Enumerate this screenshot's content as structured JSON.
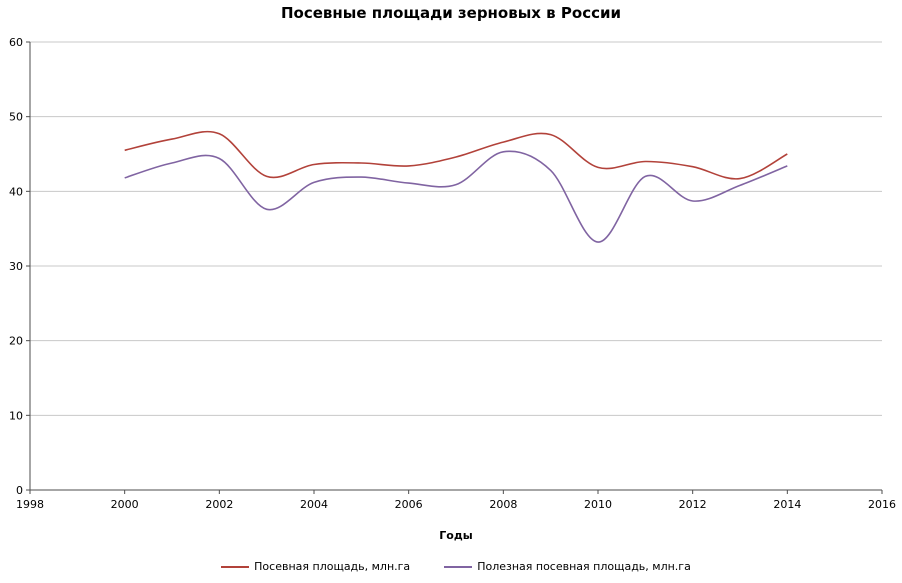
{
  "chart_data": {
    "type": "line",
    "title": "Посевные площади зерновых в России",
    "xlabel": "Годы",
    "ylabel": "",
    "xlim": [
      1998,
      2016
    ],
    "ylim": [
      0,
      60
    ],
    "x_ticks": [
      1998,
      2000,
      2002,
      2004,
      2006,
      2008,
      2010,
      2012,
      2014,
      2016
    ],
    "y_ticks": [
      0,
      10,
      20,
      30,
      40,
      50,
      60
    ],
    "grid": "horizontal",
    "legend_position": "bottom",
    "x": [
      2000,
      2001,
      2002,
      2003,
      2004,
      2005,
      2006,
      2007,
      2008,
      2009,
      2010,
      2011,
      2012,
      2013,
      2014
    ],
    "series": [
      {
        "name": "Посевная площадь, млн.га",
        "color": "#b2423a",
        "values": [
          45.5,
          47.0,
          47.7,
          42.0,
          43.6,
          43.8,
          43.4,
          44.6,
          46.6,
          47.6,
          43.2,
          44.0,
          43.3,
          41.7,
          45.0
        ]
      },
      {
        "name": "Полезная посевная площадь, млн.га",
        "color": "#8064a2",
        "values": [
          41.8,
          43.8,
          44.4,
          37.6,
          41.2,
          41.9,
          41.1,
          40.9,
          45.3,
          42.8,
          33.2,
          42.0,
          38.7,
          40.8,
          43.4
        ]
      }
    ],
    "colors": {
      "gridline": "#c8c8c8",
      "axis": "#4d4d4d",
      "text": "#000000"
    }
  }
}
